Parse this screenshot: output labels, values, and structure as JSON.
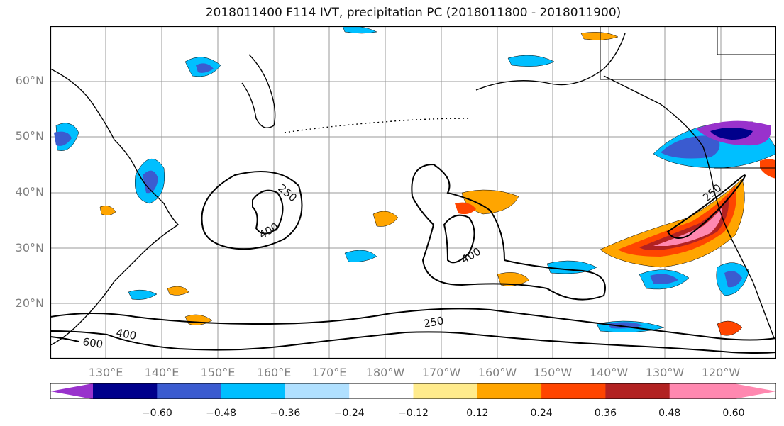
{
  "title": "2018011400 F114 IVT, precipitation PC (2018011800 - 2018011900)",
  "map": {
    "projection": "PlateCarree",
    "lon_range": [
      121,
      246
    ],
    "lat_range": [
      10,
      70
    ],
    "lat_ticks": [
      "20°N",
      "30°N",
      "40°N",
      "50°N",
      "60°N"
    ],
    "lon_ticks": [
      "130°E",
      "140°E",
      "150°E",
      "160°E",
      "170°E",
      "180°W",
      "170°W",
      "160°W",
      "150°W",
      "140°W",
      "130°W",
      "120°W"
    ],
    "gridlines": true,
    "background": "#ffffff"
  },
  "ivt_contours": {
    "levels": [
      250,
      400,
      600
    ],
    "labels": [
      "250",
      "400",
      "250",
      "400",
      "250",
      "400",
      "600",
      "250"
    ]
  },
  "colorbar": {
    "ticks": [
      "−0.60",
      "−0.48",
      "−0.36",
      "−0.24",
      "−0.12",
      "0.12",
      "0.24",
      "0.36",
      "0.48",
      "0.60"
    ],
    "colors": [
      "#9932CC",
      "#00008B",
      "#3A5BD0",
      "#00BFFF",
      "#B0E0FF",
      "#FFFFFF",
      "#FFEB8C",
      "#FFA500",
      "#FF4500",
      "#B22222",
      "#FF88B0",
      "#FF88B0"
    ],
    "extend": "both"
  }
}
